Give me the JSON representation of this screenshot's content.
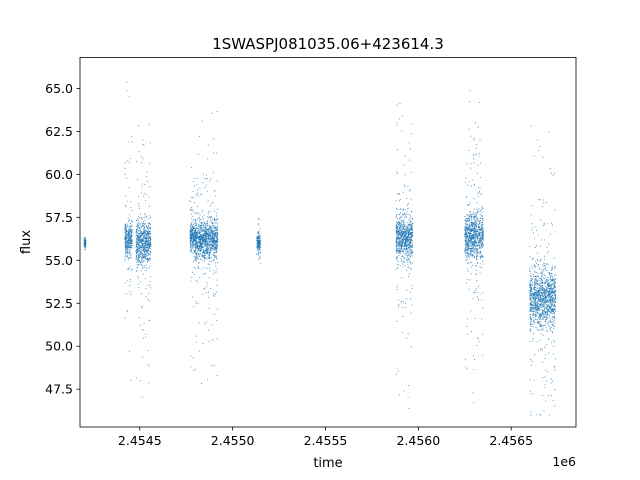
{
  "chart_data": {
    "type": "scatter",
    "title": "1SWASPJ081035.06+423614.3",
    "xlabel": "time",
    "ylabel": "flux",
    "x_offset_label": "1e6",
    "xlim": [
      2454178,
      2456849
    ],
    "ylim": [
      45.3,
      66.8
    ],
    "x_ticks": [
      2454500,
      2455000,
      2455500,
      2456000,
      2456500
    ],
    "x_tick_labels": [
      "2.4545",
      "2.4550",
      "2.4555",
      "2.4560",
      "2.4565"
    ],
    "y_ticks": [
      47.5,
      50.0,
      52.5,
      55.0,
      57.5,
      60.0,
      62.5,
      65.0
    ],
    "y_tick_labels": [
      "47.5",
      "50.0",
      "52.5",
      "55.0",
      "57.5",
      "60.0",
      "62.5",
      "65.0"
    ],
    "grid": false,
    "marker_color": "#1f77b4",
    "clusters": [
      {
        "x_start": 2454200,
        "x_end": 2454210,
        "median": 56.0,
        "spread": 0.25,
        "outlier_low": 55.6,
        "outlier_high": 56.3
      },
      {
        "x_start": 2454420,
        "x_end": 2454460,
        "median": 56.2,
        "spread": 0.9,
        "outlier_low": 46.0,
        "outlier_high": 66.0
      },
      {
        "x_start": 2454480,
        "x_end": 2454560,
        "median": 56.0,
        "spread": 1.2,
        "outlier_low": 46.2,
        "outlier_high": 64.0
      },
      {
        "x_start": 2454770,
        "x_end": 2454800,
        "median": 56.4,
        "spread": 0.7,
        "outlier_low": 48.0,
        "outlier_high": 60.5
      },
      {
        "x_start": 2454800,
        "x_end": 2454920,
        "median": 56.2,
        "spread": 1.0,
        "outlier_low": 47.8,
        "outlier_high": 65.0
      },
      {
        "x_start": 2455130,
        "x_end": 2455150,
        "median": 56.0,
        "spread": 0.5,
        "outlier_low": 54.8,
        "outlier_high": 57.4
      },
      {
        "x_start": 2455880,
        "x_end": 2455970,
        "median": 56.3,
        "spread": 1.1,
        "outlier_low": 46.2,
        "outlier_high": 65.3
      },
      {
        "x_start": 2456250,
        "x_end": 2456350,
        "median": 56.4,
        "spread": 1.2,
        "outlier_low": 46.5,
        "outlier_high": 66.0
      },
      {
        "x_start": 2456600,
        "x_end": 2456740,
        "median": 52.8,
        "spread": 1.5,
        "outlier_low": 46.0,
        "outlier_high": 64.0
      }
    ]
  }
}
